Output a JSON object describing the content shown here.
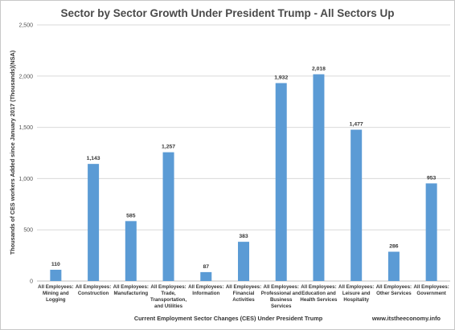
{
  "chart_data": {
    "type": "bar",
    "title": "Sector by Sector Growth Under President Trump - All Sectors Up",
    "xlabel": "Current Employment Sector Changes (CES) Under President Trump",
    "ylabel": "Thousands of CES workers Added since January 2017 (Thousands)(NSA)",
    "ylim": [
      0,
      2500
    ],
    "yticks": [
      "0",
      "500",
      "1,000",
      "1,500",
      "2,000",
      "2,500"
    ],
    "grid": true,
    "categories": [
      [
        "All Employees:",
        "Mining and",
        "Logging"
      ],
      [
        "All Employees:",
        "Construction"
      ],
      [
        "All Employees:",
        "Manufacturing"
      ],
      [
        "All Employees:",
        "Trade,",
        "Transportation,",
        "and Utilities"
      ],
      [
        "All Employees:",
        "Information"
      ],
      [
        "All Employees:",
        "Financial",
        "Activities"
      ],
      [
        "All Employees:",
        "Professional and",
        "Business",
        "Services"
      ],
      [
        "All Employees:",
        "Education and",
        "Health Services"
      ],
      [
        "All Employees:",
        "Leisure and",
        "Hospitality"
      ],
      [
        "All Employees:",
        "Other Services"
      ],
      [
        "All Employees:",
        "Government"
      ]
    ],
    "values": [
      110,
      1143,
      585,
      1257,
      87,
      383,
      1932,
      2018,
      1477,
      286,
      953
    ],
    "value_labels": [
      "110",
      "1,143",
      "585",
      "1,257",
      "87",
      "383",
      "1,932",
      "2,018",
      "1,477",
      "286",
      "953"
    ],
    "color": "#5b9bd5",
    "source": "www.itstheeconomy.info"
  }
}
